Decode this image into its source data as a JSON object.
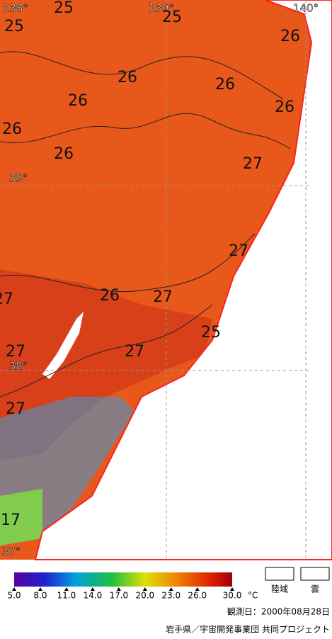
{
  "map": {
    "graticule": [
      "138°",
      "139°",
      "140°",
      "39°",
      "38°",
      "37°"
    ],
    "contour_labels": [
      "25",
      "25",
      "25",
      "25",
      "26",
      "26",
      "26",
      "26",
      "26",
      "26",
      "26",
      "26",
      "27",
      "27",
      "27",
      "27",
      "27",
      "27",
      "27",
      "17"
    ]
  },
  "colorbar": {
    "ticks": [
      {
        "value": 5,
        "label": "5.0"
      },
      {
        "value": 8,
        "label": "8.0"
      },
      {
        "value": 11,
        "label": "11.0"
      },
      {
        "value": 14,
        "label": "14.0"
      },
      {
        "value": 17,
        "label": "17.0"
      },
      {
        "value": 20,
        "label": "20.0"
      },
      {
        "value": 23,
        "label": "23.0"
      },
      {
        "value": 26,
        "label": "26.0"
      },
      {
        "value": 30,
        "label": "30.0"
      }
    ],
    "range": [
      5,
      30
    ],
    "unit": "°C"
  },
  "legend": [
    "陸域",
    "雲"
  ],
  "footer": {
    "date": "観測日：2000年08月28日",
    "credit": "岩手県／宇宙開発事業団  共同プロジェクト"
  }
}
